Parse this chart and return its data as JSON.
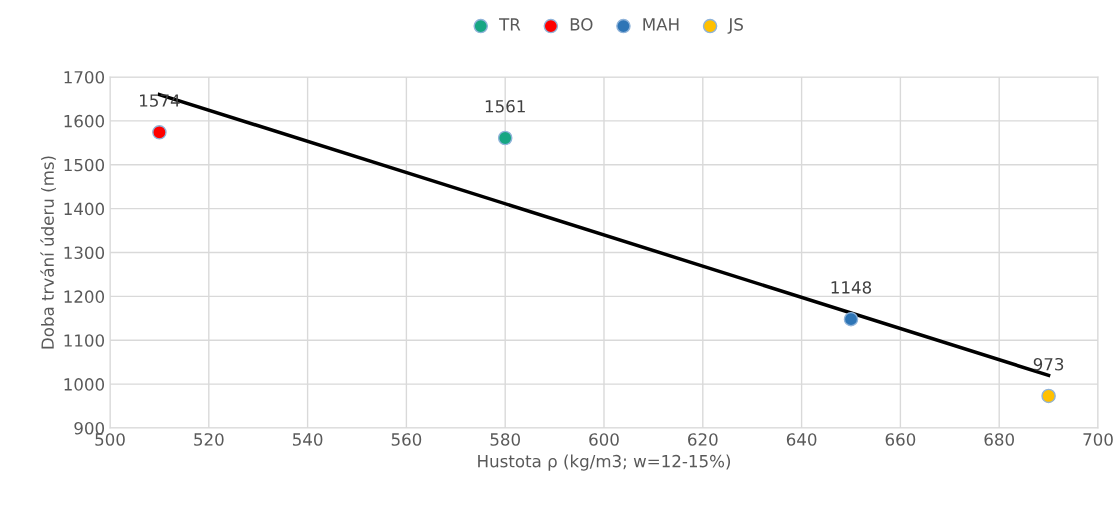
{
  "chart_data": {
    "type": "scatter",
    "xlabel": "Hustota ρ (kg/m3; w=12-15%)",
    "ylabel": "Doba trvání úderu (ms)",
    "series": [
      {
        "name": "TR",
        "color": "#17a683",
        "x": [
          580
        ],
        "values": [
          1561
        ],
        "value_labels": [
          "1561"
        ]
      },
      {
        "name": "BO",
        "color": "#ff0000",
        "x": [
          510
        ],
        "values": [
          1574
        ],
        "value_labels": [
          "1574"
        ]
      },
      {
        "name": "MAH",
        "color": "#2e75b6",
        "x": [
          650
        ],
        "values": [
          1148
        ],
        "value_labels": [
          "1148"
        ]
      },
      {
        "name": "JS",
        "color": "#ffc000",
        "x": [
          690
        ],
        "values": [
          973
        ],
        "value_labels": [
          "973"
        ]
      },
      {
        "type": "line",
        "color": "#000000",
        "x": [
          510,
          690
        ],
        "values": [
          1660,
          1020
        ],
        "marker": "none"
      }
    ],
    "xlim": [
      500,
      700
    ],
    "xticks": [
      500,
      520,
      540,
      560,
      580,
      600,
      620,
      640,
      660,
      680,
      700
    ],
    "ylim": [
      900,
      1700
    ],
    "yticks": [
      900,
      1000,
      1100,
      1200,
      1300,
      1400,
      1500,
      1600,
      1700
    ],
    "grid": true,
    "legend": "top",
    "marker": "circle"
  }
}
